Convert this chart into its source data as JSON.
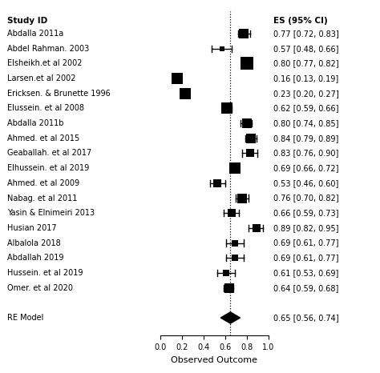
{
  "studies": [
    {
      "label": "Abdalla 2011a",
      "es": 0.77,
      "lo": 0.72,
      "hi": 0.83,
      "ci_text": "0.77 [0.72, 0.83]"
    },
    {
      "label": "Abdel Rahman. 2003",
      "es": 0.57,
      "lo": 0.48,
      "hi": 0.66,
      "ci_text": "0.57 [0.48, 0.66]"
    },
    {
      "label": "Elsheikh.et al 2002",
      "es": 0.8,
      "lo": 0.77,
      "hi": 0.82,
      "ci_text": "0.80 [0.77, 0.82]"
    },
    {
      "label": "Larsen.et al 2002",
      "es": 0.16,
      "lo": 0.13,
      "hi": 0.19,
      "ci_text": "0.16 [0.13, 0.19]"
    },
    {
      "label": "Ericksen. & Brunette 1996",
      "es": 0.23,
      "lo": 0.2,
      "hi": 0.27,
      "ci_text": "0.23 [0.20, 0.27]"
    },
    {
      "label": "Elussein. et al 2008",
      "es": 0.62,
      "lo": 0.59,
      "hi": 0.66,
      "ci_text": "0.62 [0.59, 0.66]"
    },
    {
      "label": "Abdalla 2011b",
      "es": 0.8,
      "lo": 0.74,
      "hi": 0.85,
      "ci_text": "0.80 [0.74, 0.85]"
    },
    {
      "label": "Ahmed. et al 2015",
      "es": 0.84,
      "lo": 0.79,
      "hi": 0.89,
      "ci_text": "0.84 [0.79, 0.89]"
    },
    {
      "label": "Geaballah. et al 2017",
      "es": 0.83,
      "lo": 0.76,
      "hi": 0.9,
      "ci_text": "0.83 [0.76, 0.90]"
    },
    {
      "label": "Elhussein. et al 2019",
      "es": 0.69,
      "lo": 0.66,
      "hi": 0.72,
      "ci_text": "0.69 [0.66, 0.72]"
    },
    {
      "label": "Ahmed. et al 2009",
      "es": 0.53,
      "lo": 0.46,
      "hi": 0.6,
      "ci_text": "0.53 [0.46, 0.60]"
    },
    {
      "label": "Nabag. et al 2011",
      "es": 0.76,
      "lo": 0.7,
      "hi": 0.82,
      "ci_text": "0.76 [0.70, 0.82]"
    },
    {
      "label": "Yasin & Elnimeiri 2013",
      "es": 0.66,
      "lo": 0.59,
      "hi": 0.73,
      "ci_text": "0.66 [0.59, 0.73]"
    },
    {
      "label": "Husian 2017",
      "es": 0.89,
      "lo": 0.82,
      "hi": 0.95,
      "ci_text": "0.89 [0.82, 0.95]"
    },
    {
      "label": "Albalola 2018",
      "es": 0.69,
      "lo": 0.61,
      "hi": 0.77,
      "ci_text": "0.69 [0.61, 0.77]"
    },
    {
      "label": "Abdallah 2019",
      "es": 0.69,
      "lo": 0.61,
      "hi": 0.77,
      "ci_text": "0.69 [0.61, 0.77]"
    },
    {
      "label": "Hussein. et al 2019",
      "es": 0.61,
      "lo": 0.53,
      "hi": 0.69,
      "ci_text": "0.61 [0.53, 0.69]"
    },
    {
      "label": "Omer. et al 2020",
      "es": 0.64,
      "lo": 0.59,
      "hi": 0.68,
      "ci_text": "0.64 [0.59, 0.68]"
    }
  ],
  "re_model": {
    "label": "RE Model",
    "es": 0.65,
    "lo": 0.56,
    "hi": 0.74,
    "ci_text": "0.65 [0.56, 0.74]"
  },
  "xticks": [
    0.0,
    0.2,
    0.4,
    0.6,
    0.8,
    1.0
  ],
  "xlabel": "Observed Outcome",
  "col_header_study": "Study ID",
  "col_header_es": "ES (95% CI)",
  "vline_x": 0.65,
  "square_color": "#000000",
  "diamond_color": "#000000",
  "ci_line_color": "#000000",
  "bg_color": "#ffffff",
  "label_fontsize": 7.0,
  "header_fontsize": 7.5,
  "ci_text_fontsize": 7.0
}
